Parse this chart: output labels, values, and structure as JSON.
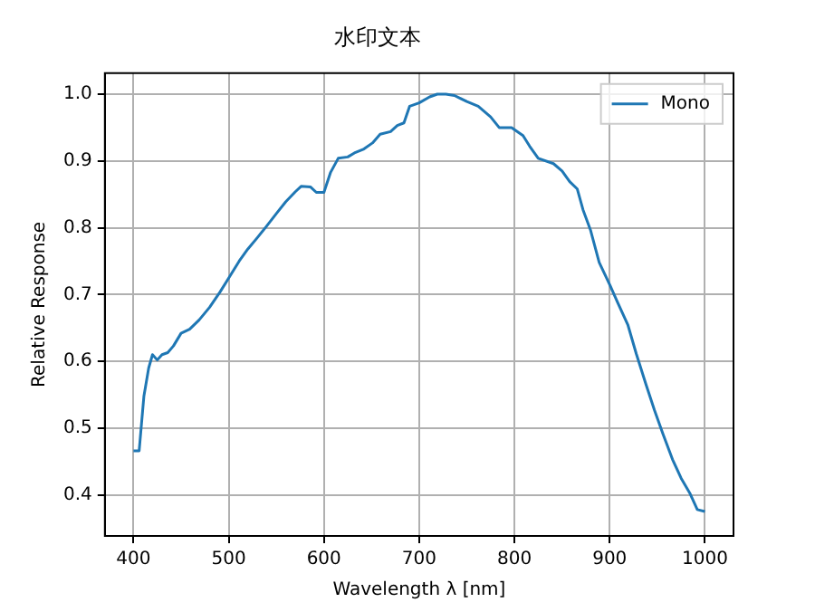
{
  "chart_data": {
    "type": "line",
    "title": "水印文本",
    "xlabel": "Wavelength λ [nm]",
    "ylabel": "Relative Response",
    "xlim": [
      370,
      1030
    ],
    "ylim": [
      0.3385,
      1.0315
    ],
    "xticks": [
      400,
      500,
      600,
      700,
      800,
      900,
      1000
    ],
    "yticks": [
      0.4,
      0.5,
      0.6,
      0.7,
      0.8,
      0.9,
      {
        "value": 1,
        "label": "1.0"
      }
    ],
    "grid": true,
    "legend": "top right",
    "marker": "none",
    "line_style": "solid",
    "series": [
      {
        "name": "Mono",
        "color": "#1f77b4",
        "x": [
          400,
          406,
          411,
          416,
          420,
          425,
          430,
          436,
          442,
          450,
          459,
          469,
          480,
          491,
          501,
          511,
          520,
          530,
          539,
          551,
          560,
          570,
          576,
          586,
          592,
          600,
          607,
          615,
          625,
          632,
          642,
          651,
          659,
          670,
          677,
          684,
          690,
          700,
          711,
          719,
          728,
          737,
          750,
          762,
          775,
          784,
          797,
          809,
          816,
          825,
          841,
          850,
          858,
          866,
          872,
          880,
          889,
          900,
          909,
          919,
          928,
          938,
          947,
          956,
          966,
          975,
          984,
          992,
          1000
        ],
        "values": [
          0.466,
          0.466,
          0.548,
          0.59,
          0.61,
          0.602,
          0.61,
          0.613,
          0.623,
          0.642,
          0.648,
          0.662,
          0.681,
          0.704,
          0.727,
          0.75,
          0.768,
          0.785,
          0.801,
          0.823,
          0.839,
          0.854,
          0.862,
          0.861,
          0.853,
          0.853,
          0.883,
          0.904,
          0.906,
          0.912,
          0.918,
          0.927,
          0.94,
          0.944,
          0.953,
          0.957,
          0.982,
          0.987,
          0.996,
          1.0,
          1.0,
          0.998,
          0.989,
          0.982,
          0.966,
          0.95,
          0.95,
          0.938,
          0.922,
          0.904,
          0.896,
          0.885,
          0.869,
          0.858,
          0.827,
          0.796,
          0.748,
          0.715,
          0.686,
          0.655,
          0.611,
          0.566,
          0.527,
          0.491,
          0.453,
          0.425,
          0.403,
          0.378,
          0.375
        ]
      }
    ]
  }
}
